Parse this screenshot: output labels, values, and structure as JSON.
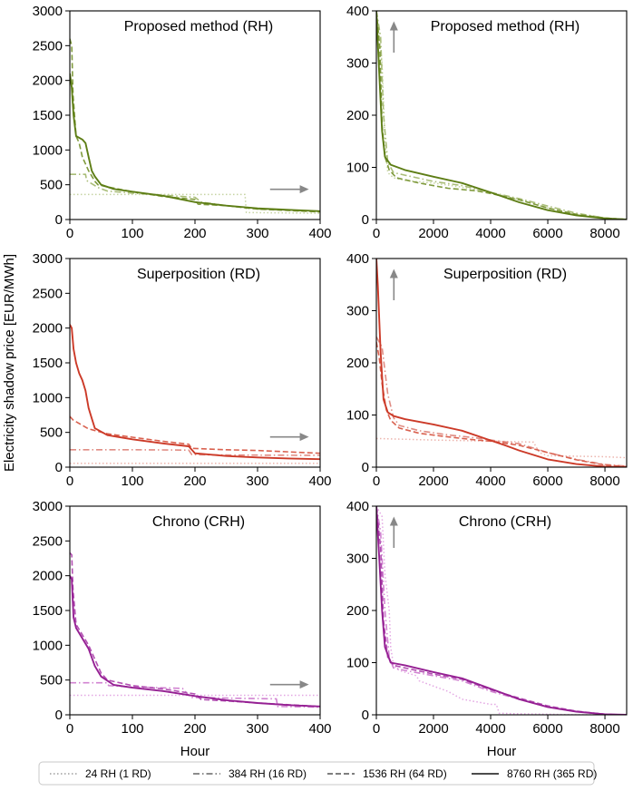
{
  "ylabel": "Electricity shadow price [EUR/MWh]",
  "legend": [
    {
      "label": "24 RH (1 RD)",
      "style": "dotted"
    },
    {
      "label": "384 RH (16 RD)",
      "style": "dashdot"
    },
    {
      "label": "1536 RH (64 RD)",
      "style": "dashed"
    },
    {
      "label": "8760 RH (365 RD)",
      "style": "solid"
    }
  ],
  "chart_data": [
    {
      "type": "line",
      "title": "Proposed method (RH)",
      "xlabel": "",
      "xlim": [
        0,
        400
      ],
      "ylim": [
        0,
        3000
      ],
      "xticks": [
        0,
        100,
        200,
        300,
        400
      ],
      "yticks": [
        0,
        500,
        1000,
        1500,
        2000,
        2500,
        3000
      ],
      "ytick_labels": [
        "0",
        "500",
        "1000",
        "1500",
        "2000",
        "2500",
        "3000"
      ],
      "colors": {
        "dotted": "#c6d4a3",
        "dashdot": "#a9bd78",
        "dashed": "#7f9a3c",
        "solid": "#5e7e16"
      },
      "arrow": "right",
      "series": [
        {
          "name": "24 RH (1 RD)",
          "style": "dotted",
          "x": [
            0,
            280,
            282,
            400
          ],
          "y": [
            360,
            360,
            100,
            90
          ]
        },
        {
          "name": "384 RH (16 RD)",
          "style": "dashdot",
          "x": [
            0,
            25,
            27,
            45,
            60,
            100,
            150,
            200,
            210,
            250,
            300,
            400
          ],
          "y": [
            650,
            650,
            560,
            460,
            410,
            380,
            350,
            320,
            250,
            200,
            150,
            115
          ]
        },
        {
          "name": "1536 RH (64 RD)",
          "style": "dashed",
          "x": [
            0,
            3,
            5,
            10,
            15,
            20,
            30,
            40,
            45,
            60,
            100,
            150,
            200,
            205,
            250,
            300,
            400
          ],
          "y": [
            2600,
            2500,
            1800,
            1200,
            1100,
            900,
            700,
            550,
            500,
            470,
            400,
            330,
            290,
            220,
            200,
            150,
            110
          ]
        },
        {
          "name": "8760 RH (365 RD)",
          "style": "solid",
          "x": [
            0,
            3,
            6,
            10,
            20,
            25,
            30,
            35,
            40,
            50,
            70,
            100,
            150,
            200,
            250,
            300,
            350,
            400
          ],
          "y": [
            2100,
            1900,
            1500,
            1200,
            1150,
            1100,
            900,
            700,
            620,
            500,
            440,
            400,
            340,
            250,
            200,
            160,
            140,
            120
          ]
        }
      ]
    },
    {
      "type": "line",
      "title": "Proposed method (RH)",
      "xlabel": "",
      "xlim": [
        0,
        8760
      ],
      "ylim": [
        0,
        400
      ],
      "xticks": [
        0,
        2000,
        4000,
        6000,
        8000
      ],
      "yticks": [
        0,
        100,
        200,
        300,
        400
      ],
      "ytick_labels": [
        "0",
        "100",
        "200",
        "300",
        "400"
      ],
      "colors": {
        "dotted": "#c6d4a3",
        "dashdot": "#a9bd78",
        "dashed": "#7f9a3c",
        "solid": "#5e7e16"
      },
      "arrow": "up",
      "series": [
        {
          "name": "24 RH (1 RD)",
          "style": "dotted",
          "x": [
            0,
            200,
            300,
            400,
            600,
            1000,
            2000,
            3000,
            4000,
            5000,
            6000,
            7000,
            8000,
            8760
          ],
          "y": [
            400,
            300,
            150,
            90,
            80,
            75,
            70,
            62,
            52,
            38,
            22,
            10,
            3,
            0
          ]
        },
        {
          "name": "384 RH (16 RD)",
          "style": "dashdot",
          "x": [
            0,
            150,
            250,
            400,
            600,
            1000,
            2000,
            3000,
            4000,
            5000,
            6000,
            7000,
            8000,
            8760
          ],
          "y": [
            400,
            350,
            200,
            110,
            90,
            85,
            73,
            65,
            52,
            40,
            26,
            12,
            3,
            0
          ]
        },
        {
          "name": "1536 RH (64 RD)",
          "style": "dashed",
          "x": [
            0,
            120,
            200,
            300,
            450,
            700,
            1500,
            2500,
            3500,
            4000,
            5000,
            6000,
            7000,
            8000,
            8760
          ],
          "y": [
            400,
            330,
            180,
            120,
            95,
            80,
            70,
            60,
            55,
            50,
            38,
            22,
            10,
            3,
            0
          ]
        },
        {
          "name": "8760 RH (365 RD)",
          "style": "solid",
          "x": [
            0,
            100,
            200,
            300,
            500,
            1000,
            2000,
            3000,
            4000,
            5000,
            6000,
            7000,
            8000,
            8760
          ],
          "y": [
            400,
            280,
            170,
            120,
            105,
            95,
            82,
            70,
            52,
            33,
            18,
            8,
            2,
            0
          ]
        }
      ]
    },
    {
      "type": "line",
      "title": "Superposition (RD)",
      "xlabel": "",
      "xlim": [
        0,
        400
      ],
      "ylim": [
        0,
        3000
      ],
      "xticks": [
        0,
        100,
        200,
        300,
        400
      ],
      "yticks": [
        0,
        500,
        1000,
        1500,
        2000,
        2500,
        3000
      ],
      "ytick_labels": [
        "0",
        "500",
        "1000",
        "1500",
        "2000",
        "2500",
        "3000"
      ],
      "colors": {
        "dotted": "#ecb5ae",
        "dashdot": "#e08c83",
        "dashed": "#d9614f",
        "solid": "#cc3a28"
      },
      "arrow": "right",
      "series": [
        {
          "name": "24 RH (1 RD)",
          "style": "dotted",
          "x": [
            0,
            400
          ],
          "y": [
            55,
            55
          ]
        },
        {
          "name": "384 RH (16 RD)",
          "style": "dashdot",
          "x": [
            0,
            100,
            190,
            195,
            250,
            400
          ],
          "y": [
            250,
            250,
            245,
            180,
            175,
            170
          ]
        },
        {
          "name": "1536 RH (64 RD)",
          "style": "dashed",
          "x": [
            0,
            5,
            30,
            60,
            100,
            150,
            190,
            195,
            250,
            300,
            400
          ],
          "y": [
            730,
            680,
            550,
            480,
            430,
            370,
            330,
            270,
            250,
            240,
            200
          ]
        },
        {
          "name": "8760 RH (365 RD)",
          "style": "solid",
          "x": [
            0,
            3,
            6,
            10,
            15,
            20,
            25,
            30,
            35,
            40,
            60,
            100,
            150,
            190,
            200,
            250,
            300,
            350,
            400
          ],
          "y": [
            2050,
            2000,
            1700,
            1500,
            1350,
            1250,
            1100,
            850,
            700,
            560,
            460,
            400,
            340,
            300,
            200,
            160,
            140,
            125,
            115
          ]
        }
      ]
    },
    {
      "type": "line",
      "title": "Superposition (RD)",
      "xlabel": "",
      "xlim": [
        0,
        8760
      ],
      "ylim": [
        0,
        400
      ],
      "xticks": [
        0,
        2000,
        4000,
        6000,
        8000
      ],
      "yticks": [
        0,
        100,
        200,
        300,
        400
      ],
      "ytick_labels": [
        "0",
        "100",
        "200",
        "300",
        "400"
      ],
      "colors": {
        "dotted": "#ecb5ae",
        "dashdot": "#e08c83",
        "dashed": "#d9614f",
        "solid": "#cc3a28"
      },
      "arrow": "up",
      "series": [
        {
          "name": "24 RH (1 RD)",
          "style": "dotted",
          "x": [
            0,
            2000,
            4000,
            5500,
            5700,
            6000,
            8000,
            8760
          ],
          "y": [
            55,
            52,
            50,
            48,
            28,
            22,
            20,
            18
          ]
        },
        {
          "name": "384 RH (16 RD)",
          "style": "dashdot",
          "x": [
            0,
            200,
            400,
            600,
            800,
            1500,
            2500,
            3500,
            4000,
            5000,
            6000,
            7000,
            8000,
            8760
          ],
          "y": [
            250,
            230,
            140,
            95,
            80,
            70,
            62,
            56,
            52,
            45,
            28,
            15,
            5,
            2
          ]
        },
        {
          "name": "1536 RH (64 RD)",
          "style": "dashed",
          "x": [
            0,
            100,
            200,
            350,
            500,
            800,
            1500,
            2500,
            3500,
            4000,
            5000,
            6000,
            7000,
            8000,
            8760
          ],
          "y": [
            240,
            210,
            160,
            110,
            90,
            75,
            65,
            58,
            52,
            50,
            42,
            28,
            14,
            4,
            1
          ]
        },
        {
          "name": "8760 RH (365 RD)",
          "style": "solid",
          "x": [
            0,
            50,
            150,
            250,
            400,
            600,
            1000,
            2000,
            3000,
            3800,
            4500,
            5000,
            6000,
            7000,
            8000,
            8760
          ],
          "y": [
            400,
            350,
            220,
            130,
            105,
            98,
            92,
            82,
            70,
            55,
            42,
            32,
            15,
            6,
            1,
            0
          ]
        }
      ]
    },
    {
      "type": "line",
      "title": "Chrono (CRH)",
      "xlabel": "Hour",
      "xlim": [
        0,
        400
      ],
      "ylim": [
        0,
        3000
      ],
      "xticks": [
        0,
        100,
        200,
        300,
        400
      ],
      "yticks": [
        0,
        500,
        1000,
        1500,
        2000,
        2500,
        3000
      ],
      "ytick_labels": [
        "0",
        "500",
        "1000",
        "1500",
        "2000",
        "2500",
        "3000"
      ],
      "colors": {
        "dotted": "#e3a7e3",
        "dashdot": "#d183d1",
        "dashed": "#b24fb2",
        "solid": "#952093"
      },
      "arrow": "right",
      "series": [
        {
          "name": "24 RH (1 RD)",
          "style": "dotted",
          "x": [
            0,
            400
          ],
          "y": [
            280,
            280
          ]
        },
        {
          "name": "384 RH (16 RD)",
          "style": "dashdot",
          "x": [
            0,
            60,
            62,
            100,
            180,
            190,
            195,
            250,
            330,
            332,
            400
          ],
          "y": [
            460,
            460,
            420,
            400,
            380,
            280,
            250,
            240,
            230,
            120,
            110
          ]
        },
        {
          "name": "1536 RH (64 RD)",
          "style": "dashed",
          "x": [
            0,
            3,
            5,
            10,
            20,
            30,
            40,
            50,
            60,
            100,
            150,
            200,
            210,
            250,
            300,
            400
          ],
          "y": [
            2330,
            2300,
            1800,
            1300,
            1150,
            1000,
            800,
            600,
            500,
            420,
            370,
            300,
            220,
            200,
            170,
            120
          ]
        },
        {
          "name": "8760 RH (365 RD)",
          "style": "solid",
          "x": [
            0,
            3,
            6,
            10,
            20,
            30,
            40,
            50,
            70,
            100,
            150,
            200,
            250,
            300,
            350,
            400
          ],
          "y": [
            2000,
            1950,
            1400,
            1250,
            1100,
            950,
            700,
            550,
            430,
            390,
            340,
            270,
            210,
            170,
            140,
            120
          ]
        }
      ]
    },
    {
      "type": "line",
      "title": "Chrono (CRH)",
      "xlabel": "Hour",
      "xlim": [
        0,
        8760
      ],
      "ylim": [
        0,
        400
      ],
      "xticks": [
        0,
        2000,
        4000,
        6000,
        8000
      ],
      "yticks": [
        0,
        100,
        200,
        300,
        400
      ],
      "ytick_labels": [
        "0",
        "100",
        "200",
        "300",
        "400"
      ],
      "colors": {
        "dotted": "#e3a7e3",
        "dashdot": "#d183d1",
        "dashed": "#b24fb2",
        "solid": "#952093"
      },
      "arrow": "up",
      "series": [
        {
          "name": "24 RH (1 RD)",
          "style": "dotted",
          "x": [
            0,
            100,
            200,
            300,
            450,
            500,
            600,
            800,
            1400,
            1500,
            2000,
            2500,
            3000,
            4000,
            4200,
            4300,
            5000,
            6000,
            7000,
            8000,
            8760
          ],
          "y": [
            400,
            390,
            380,
            270,
            200,
            130,
            95,
            85,
            75,
            65,
            55,
            45,
            30,
            20,
            20,
            3,
            2,
            1,
            0,
            0,
            0
          ]
        },
        {
          "name": "384 RH (16 RD)",
          "style": "dashdot",
          "x": [
            0,
            150,
            300,
            450,
            600,
            1000,
            2000,
            3000,
            4000,
            5000,
            6000,
            7000,
            8000,
            8760
          ],
          "y": [
            400,
            350,
            200,
            110,
            90,
            85,
            75,
            65,
            45,
            30,
            15,
            6,
            1,
            0
          ]
        },
        {
          "name": "1536 RH (64 RD)",
          "style": "dashed",
          "x": [
            0,
            150,
            250,
            400,
            600,
            1000,
            2000,
            3000,
            4000,
            5000,
            6000,
            7000,
            8000,
            8760
          ],
          "y": [
            400,
            320,
            180,
            110,
            95,
            90,
            78,
            68,
            48,
            32,
            17,
            7,
            1,
            0
          ]
        },
        {
          "name": "8760 RH (365 RD)",
          "style": "solid",
          "x": [
            0,
            100,
            200,
            300,
            500,
            1000,
            2000,
            3000,
            4000,
            5000,
            6000,
            7000,
            8000,
            8760
          ],
          "y": [
            400,
            300,
            200,
            130,
            100,
            95,
            82,
            70,
            50,
            30,
            15,
            6,
            1,
            0
          ]
        }
      ]
    }
  ]
}
